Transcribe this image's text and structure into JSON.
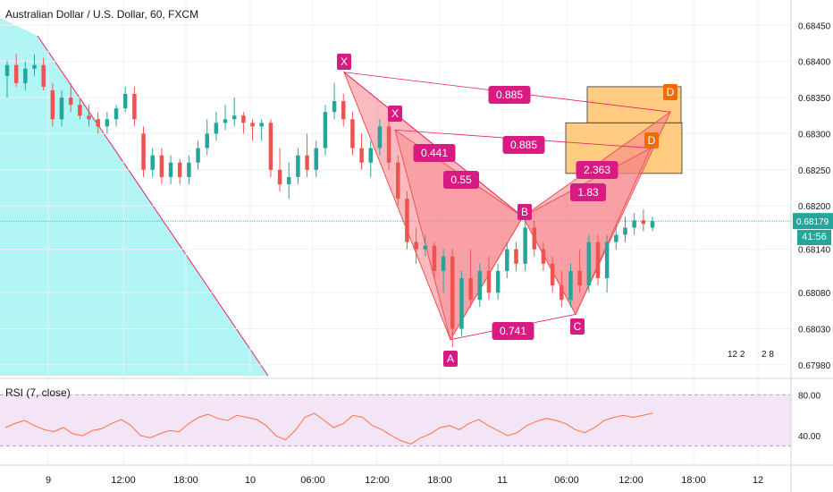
{
  "header": {
    "title": "Australian Dollar / U.S. Dollar, 60, FXCM"
  },
  "rsi": {
    "label": "RSI (7, close)",
    "ticks": [
      "80.00",
      "40.00"
    ]
  },
  "price_axis": {
    "ticks": [
      "0.68450",
      "0.68400",
      "0.68350",
      "0.68300",
      "0.68250",
      "0.68200",
      "0.68140",
      "0.68080",
      "0.68030",
      "0.67980"
    ],
    "current_price": "0.68179",
    "countdown": "41:56"
  },
  "time_axis": {
    "ticks": [
      "9",
      "12:00",
      "18:00",
      "10",
      "06:00",
      "12:00",
      "18:00",
      "11",
      "06:00",
      "12:00",
      "18:00",
      "12"
    ]
  },
  "badges": [
    {
      "text": "12 2"
    },
    {
      "text": "2 8"
    }
  ],
  "pattern_labels": {
    "points": [
      "X",
      "X",
      "A",
      "B",
      "C",
      "D",
      "D"
    ],
    "ratios": [
      "0.885",
      "0.885",
      "0.441",
      "0.55",
      "2.363",
      "1.83",
      "0.741"
    ]
  },
  "colors": {
    "bull": "#26a69a",
    "bear": "#ef5350",
    "pattern_fill": "#f7818a",
    "pattern_label": "#d81b82",
    "target_box": "#ffb74d",
    "trend_fill": "#b2f5f5",
    "rsi_bg": "#f3e5f5",
    "rsi_line": "#ff7043"
  },
  "chart_data": {
    "type": "candlestick",
    "symbol": "Australian Dollar / U.S. Dollar",
    "timeframe": "60",
    "exchange": "FXCM",
    "ylim": [
      0.67965,
      0.68485
    ],
    "candles_ohlc": [
      [
        0.6838,
        0.684,
        0.6835,
        0.68395
      ],
      [
        0.68395,
        0.6841,
        0.68365,
        0.6837
      ],
      [
        0.6837,
        0.684,
        0.6836,
        0.6839
      ],
      [
        0.6839,
        0.6841,
        0.6838,
        0.68395
      ],
      [
        0.68395,
        0.68405,
        0.6836,
        0.68365
      ],
      [
        0.6836,
        0.6837,
        0.6831,
        0.6832
      ],
      [
        0.6832,
        0.6836,
        0.6831,
        0.6835
      ],
      [
        0.6835,
        0.6837,
        0.6833,
        0.6834
      ],
      [
        0.6834,
        0.6835,
        0.6832,
        0.68325
      ],
      [
        0.68325,
        0.6834,
        0.6831,
        0.6832
      ],
      [
        0.6832,
        0.6833,
        0.683,
        0.6831
      ],
      [
        0.6831,
        0.6833,
        0.683,
        0.6832
      ],
      [
        0.6832,
        0.6834,
        0.6831,
        0.68335
      ],
      [
        0.68335,
        0.68365,
        0.6833,
        0.68355
      ],
      [
        0.68355,
        0.68365,
        0.6831,
        0.6832
      ],
      [
        0.683,
        0.6831,
        0.6824,
        0.6825
      ],
      [
        0.6825,
        0.6828,
        0.6824,
        0.6827
      ],
      [
        0.6827,
        0.6828,
        0.6823,
        0.6824
      ],
      [
        0.6824,
        0.6827,
        0.6823,
        0.6826
      ],
      [
        0.6826,
        0.68265,
        0.6823,
        0.6824
      ],
      [
        0.6824,
        0.6827,
        0.6823,
        0.6826
      ],
      [
        0.6826,
        0.6829,
        0.6825,
        0.6828
      ],
      [
        0.6828,
        0.6832,
        0.6827,
        0.683
      ],
      [
        0.683,
        0.6833,
        0.6829,
        0.68315
      ],
      [
        0.68315,
        0.6834,
        0.68305,
        0.6832
      ],
      [
        0.6832,
        0.6835,
        0.6831,
        0.68325
      ],
      [
        0.68325,
        0.6833,
        0.683,
        0.68315
      ],
      [
        0.68315,
        0.6832,
        0.6829,
        0.6831
      ],
      [
        0.6831,
        0.6832,
        0.6829,
        0.68315
      ],
      [
        0.68315,
        0.6832,
        0.6824,
        0.6825
      ],
      [
        0.6825,
        0.6828,
        0.6822,
        0.6823
      ],
      [
        0.6823,
        0.6826,
        0.6821,
        0.6824
      ],
      [
        0.6824,
        0.6828,
        0.6823,
        0.6827
      ],
      [
        0.6827,
        0.683,
        0.6824,
        0.6825
      ],
      [
        0.6825,
        0.6829,
        0.6824,
        0.6828
      ],
      [
        0.6828,
        0.6834,
        0.6827,
        0.6833
      ],
      [
        0.6833,
        0.6837,
        0.6832,
        0.68345
      ],
      [
        0.68345,
        0.68355,
        0.6831,
        0.6832
      ],
      [
        0.6832,
        0.6833,
        0.6827,
        0.6828
      ],
      [
        0.6828,
        0.683,
        0.6825,
        0.6826
      ],
      [
        0.6826,
        0.6829,
        0.6824,
        0.6828
      ],
      [
        0.6828,
        0.6832,
        0.6827,
        0.6831
      ],
      [
        0.6831,
        0.6832,
        0.6825,
        0.6826
      ],
      [
        0.6826,
        0.6827,
        0.682,
        0.6821
      ],
      [
        0.6821,
        0.6822,
        0.6814,
        0.6815
      ],
      [
        0.6815,
        0.6817,
        0.6812,
        0.6814
      ],
      [
        0.6814,
        0.6816,
        0.6813,
        0.68145
      ],
      [
        0.68145,
        0.6815,
        0.681,
        0.6811
      ],
      [
        0.6811,
        0.6814,
        0.6808,
        0.6813
      ],
      [
        0.6813,
        0.6814,
        0.68005,
        0.6803
      ],
      [
        0.6803,
        0.6811,
        0.6802,
        0.681
      ],
      [
        0.681,
        0.6814,
        0.6806,
        0.6807
      ],
      [
        0.6807,
        0.6812,
        0.6806,
        0.6811
      ],
      [
        0.6811,
        0.6813,
        0.6807,
        0.6808
      ],
      [
        0.6808,
        0.6812,
        0.6807,
        0.6811
      ],
      [
        0.6811,
        0.6815,
        0.681,
        0.6814
      ],
      [
        0.6814,
        0.6815,
        0.6811,
        0.6812
      ],
      [
        0.6812,
        0.6818,
        0.6811,
        0.6817
      ],
      [
        0.6817,
        0.6818,
        0.6813,
        0.6814
      ],
      [
        0.6814,
        0.6815,
        0.6811,
        0.6812
      ],
      [
        0.6812,
        0.6813,
        0.6808,
        0.6809
      ],
      [
        0.6809,
        0.6811,
        0.6806,
        0.6807
      ],
      [
        0.6807,
        0.6812,
        0.6806,
        0.6811
      ],
      [
        0.6811,
        0.6814,
        0.6808,
        0.6809
      ],
      [
        0.6809,
        0.6816,
        0.6808,
        0.6815
      ],
      [
        0.6815,
        0.6816,
        0.6809,
        0.681
      ],
      [
        0.681,
        0.6816,
        0.6808,
        0.6815
      ],
      [
        0.6815,
        0.68175,
        0.6814,
        0.6816
      ],
      [
        0.6816,
        0.68185,
        0.6815,
        0.6817
      ],
      [
        0.6817,
        0.6819,
        0.6816,
        0.6818
      ],
      [
        0.6818,
        0.68195,
        0.68165,
        0.68175
      ],
      [
        0.6817,
        0.68185,
        0.68165,
        0.68179
      ]
    ],
    "harmonic_pattern_1": {
      "X": 0.68385,
      "A": 0.68015,
      "B": 0.68185,
      "C": 0.6805,
      "D": 0.6833,
      "ratios": {
        "XB": 0.441,
        "XD": 0.885,
        "AC": 0.741,
        "BD": 2.363
      }
    },
    "harmonic_pattern_2": {
      "X": 0.68305,
      "A": 0.68015,
      "B": 0.68185,
      "C": 0.6805,
      "D": 0.6828,
      "ratios": {
        "XB": 0.55,
        "XD": 0.885,
        "BD": 1.83
      }
    },
    "rsi_series": [
      48,
      52,
      55,
      50,
      46,
      44,
      48,
      42,
      40,
      45,
      47,
      52,
      56,
      50,
      40,
      38,
      42,
      45,
      44,
      52,
      58,
      61,
      57,
      55,
      60,
      58,
      56,
      50,
      40,
      36,
      45,
      58,
      62,
      55,
      48,
      52,
      60,
      58,
      50,
      46,
      40,
      35,
      32,
      38,
      42,
      48,
      50,
      46,
      52,
      56,
      50,
      45,
      40,
      43,
      50,
      54,
      57,
      55,
      52,
      46,
      43,
      48,
      55,
      58,
      60,
      58,
      60,
      62
    ]
  }
}
